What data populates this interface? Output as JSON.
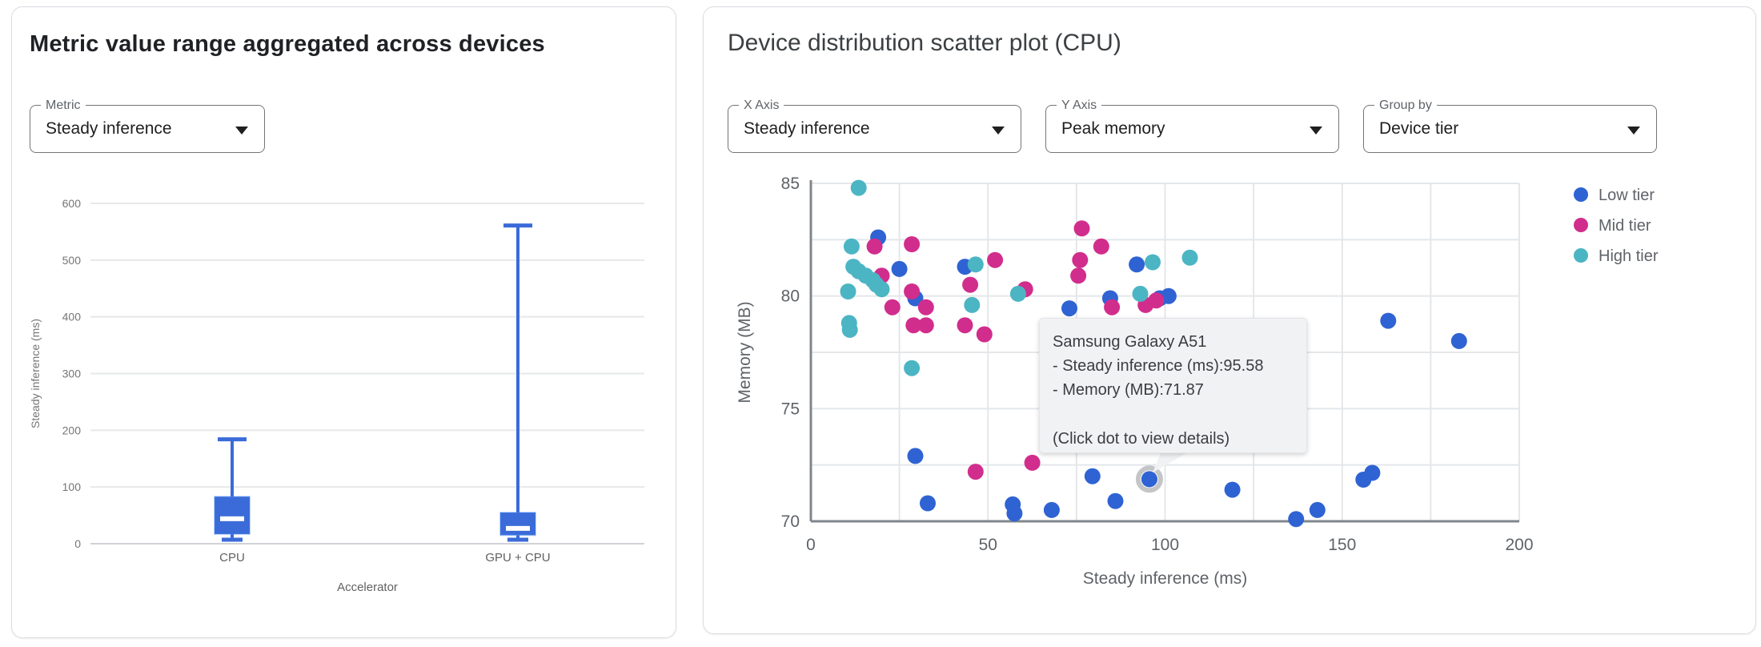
{
  "boxplot_panel": {
    "title": "Metric value range aggregated across devices",
    "metric_select": {
      "label": "Metric",
      "value": "Steady inference"
    }
  },
  "scatter_panel": {
    "title": "Device distribution scatter plot (CPU)",
    "x_axis_select": {
      "label": "X Axis",
      "value": "Steady inference"
    },
    "y_axis_select": {
      "label": "Y Axis",
      "value": "Peak memory"
    },
    "group_by_select": {
      "label": "Group by",
      "value": "Device tier"
    },
    "tooltip": {
      "title": "Samsung Galaxy A51",
      "line1": "- Steady inference (ms):95.58",
      "line2": "- Memory (MB):71.87",
      "footer": "(Click dot to view details)"
    }
  },
  "colors": {
    "box_blue": "#3a6bd8",
    "low_tier_blue": "#2f63d3",
    "mid_tier_pink": "#d12d8c",
    "high_tier_teal": "#4cb5c4"
  },
  "chart_data": [
    {
      "type": "box",
      "title": "Metric value range aggregated across devices",
      "categories": [
        "CPU",
        "GPU + CPU"
      ],
      "xlabel": "Accelerator",
      "ylabel": "Steady inference (ms)",
      "ylim": [
        0,
        600
      ],
      "ytick_step": 100,
      "grid": true,
      "box_color": "#3a6bd8",
      "series": [
        {
          "category": "CPU",
          "min": 7,
          "q1": 17,
          "median": 44,
          "q3": 83,
          "max": 184
        },
        {
          "category": "GPU + CPU",
          "min": 7,
          "q1": 15,
          "median": 27,
          "q3": 55,
          "max": 561
        }
      ]
    },
    {
      "type": "scatter",
      "title": "Device distribution scatter plot (CPU)",
      "xlabel": "Steady inference (ms)",
      "ylabel": "Memory (MB)",
      "xlim": [
        0,
        200
      ],
      "ylim": [
        70,
        85
      ],
      "xticks": [
        0,
        50,
        100,
        150,
        200
      ],
      "yticks": [
        70,
        75,
        80,
        85
      ],
      "x_grid_step": 25,
      "y_grid_step": 2.5,
      "grid": true,
      "legend_position": "right",
      "series": [
        {
          "name": "Low tier",
          "color": "#2f63d3",
          "points": [
            [
              19,
              82.6
            ],
            [
              25,
              81.2
            ],
            [
              29.5,
              79.9
            ],
            [
              43.5,
              81.3
            ],
            [
              73,
              79.45
            ],
            [
              84.5,
              79.9
            ],
            [
              92,
              81.4
            ],
            [
              98.5,
              79.9
            ],
            [
              101,
              80.0
            ],
            [
              163,
              78.9
            ],
            [
              183,
              78.0
            ],
            [
              29.5,
              72.9
            ],
            [
              33,
              70.8
            ],
            [
              57,
              70.75
            ],
            [
              57.5,
              70.35
            ],
            [
              68,
              70.5
            ],
            [
              79.5,
              72.0
            ],
            [
              86,
              70.9
            ],
            [
              95.58,
              71.87
            ],
            [
              119,
              71.4
            ],
            [
              137,
              70.1
            ],
            [
              143,
              70.5
            ],
            [
              156,
              71.85
            ],
            [
              158.5,
              72.15
            ]
          ]
        },
        {
          "name": "Mid tier",
          "color": "#d12d8c",
          "points": [
            [
              18,
              82.2
            ],
            [
              28.5,
              82.3
            ],
            [
              20,
              80.9
            ],
            [
              23,
              79.5
            ],
            [
              28.5,
              80.2
            ],
            [
              32.5,
              79.5
            ],
            [
              29,
              78.7
            ],
            [
              32.5,
              78.7
            ],
            [
              43.5,
              78.7
            ],
            [
              45,
              80.5
            ],
            [
              52,
              81.6
            ],
            [
              49,
              78.3
            ],
            [
              60.5,
              80.3
            ],
            [
              76.5,
              83.0
            ],
            [
              76,
              81.6
            ],
            [
              75.5,
              80.9
            ],
            [
              82,
              82.2
            ],
            [
              85,
              79.5
            ],
            [
              94.5,
              79.6
            ],
            [
              97.5,
              79.8
            ],
            [
              46.5,
              72.2
            ],
            [
              62.5,
              72.6
            ]
          ]
        },
        {
          "name": "High tier",
          "color": "#4cb5c4",
          "points": [
            [
              13.5,
              84.8
            ],
            [
              11.5,
              82.2
            ],
            [
              12,
              81.3
            ],
            [
              13.5,
              81.1
            ],
            [
              15.5,
              80.9
            ],
            [
              17.5,
              80.7
            ],
            [
              18.5,
              80.5
            ],
            [
              20,
              80.3
            ],
            [
              10.5,
              80.2
            ],
            [
              10.8,
              78.8
            ],
            [
              11,
              78.5
            ],
            [
              28.5,
              76.8
            ],
            [
              46.5,
              81.4
            ],
            [
              45.5,
              79.6
            ],
            [
              58.5,
              80.1
            ],
            [
              93,
              80.1
            ],
            [
              96.5,
              81.5
            ],
            [
              107,
              81.7
            ]
          ]
        }
      ],
      "highlighted_point": {
        "series": "Low tier",
        "x": 95.58,
        "y": 71.87
      }
    }
  ]
}
